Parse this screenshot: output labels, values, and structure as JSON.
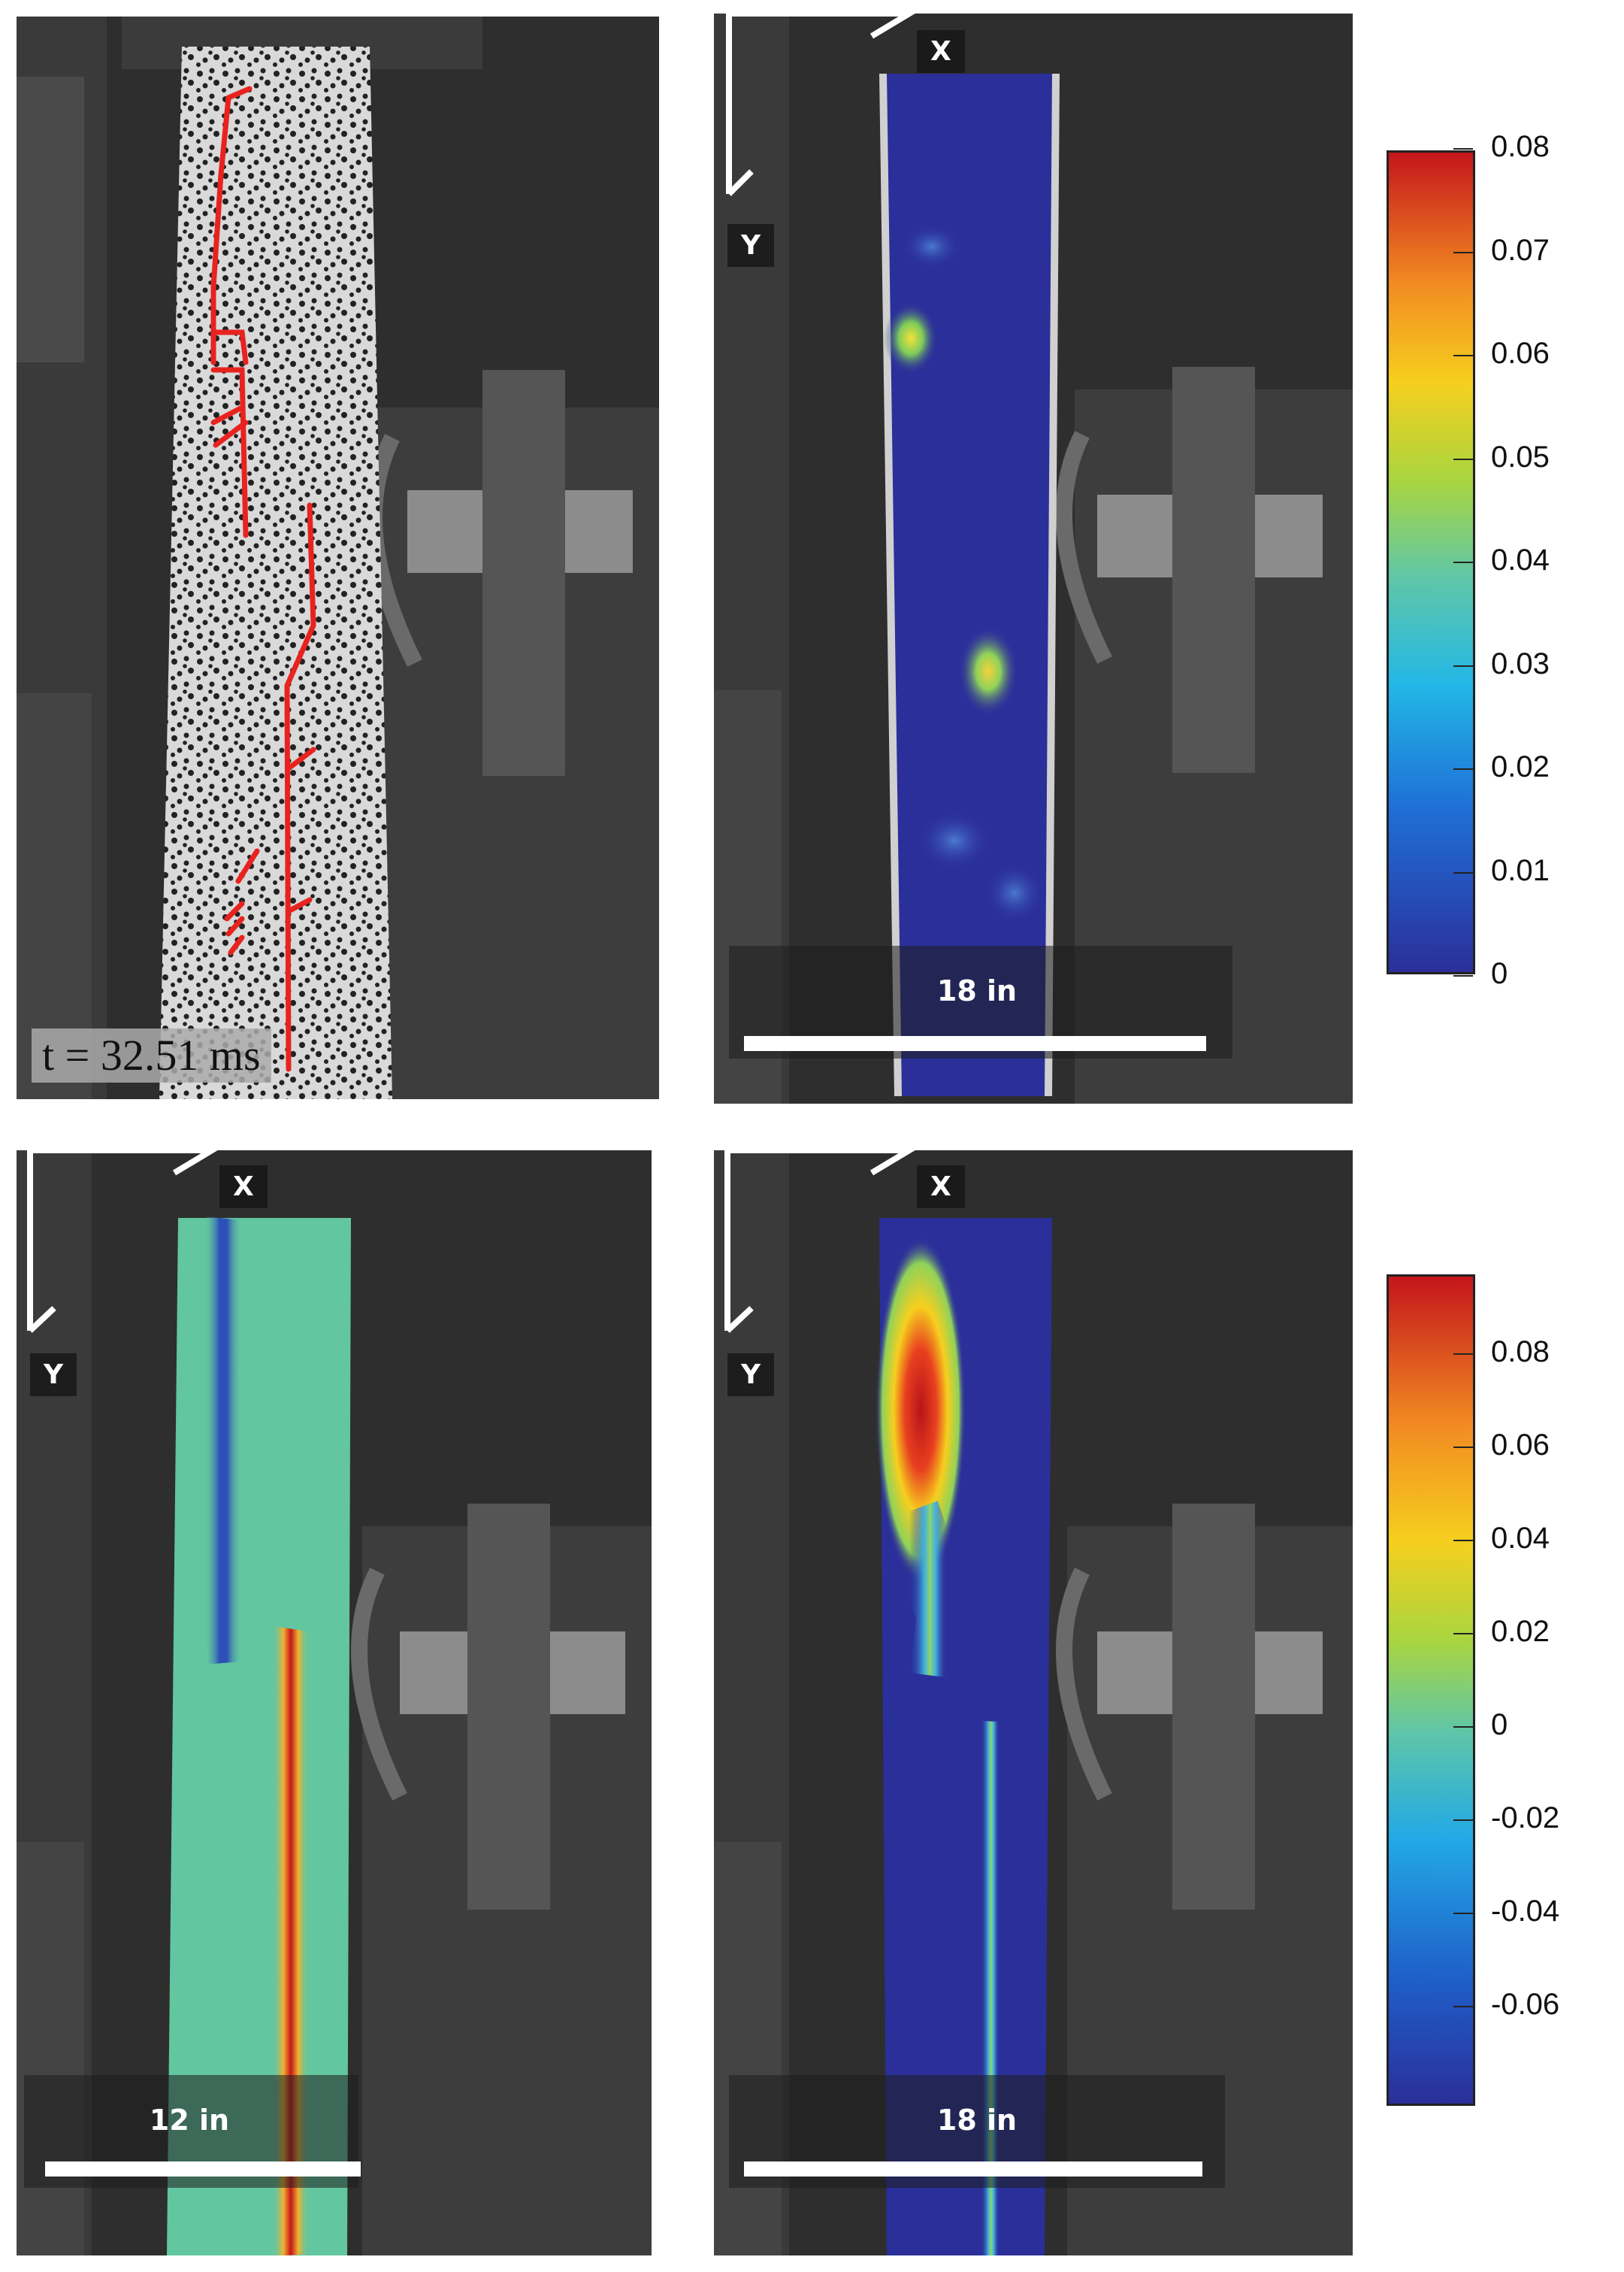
{
  "panels": {
    "top_left": {
      "time_label": "t = 32.51 ms"
    },
    "top_right": {
      "axis_x": "X",
      "axis_y": "Y",
      "scale_label": "18 in"
    },
    "bottom_left": {
      "axis_x": "X",
      "axis_y": "Y",
      "scale_label": "12 in"
    },
    "bottom_right": {
      "axis_x": "X",
      "axis_y": "Y",
      "scale_label": "18 in"
    }
  },
  "colorbar_top": {
    "ticks": [
      "0.08",
      "0.07",
      "0.06",
      "0.05",
      "0.04",
      "0.03",
      "0.02",
      "0.01",
      "0"
    ],
    "range": [
      0,
      0.08
    ]
  },
  "colorbar_bottom": {
    "ticks": [
      "0.08",
      "0.06",
      "0.04",
      "0.02",
      "0",
      "-0.02",
      "-0.04",
      "-0.06"
    ],
    "range": [
      -0.08,
      0.1
    ]
  },
  "colors": {
    "crack": "#e8231f",
    "jet_low": "#2b2f9a",
    "jet_high": "#c4161c"
  }
}
